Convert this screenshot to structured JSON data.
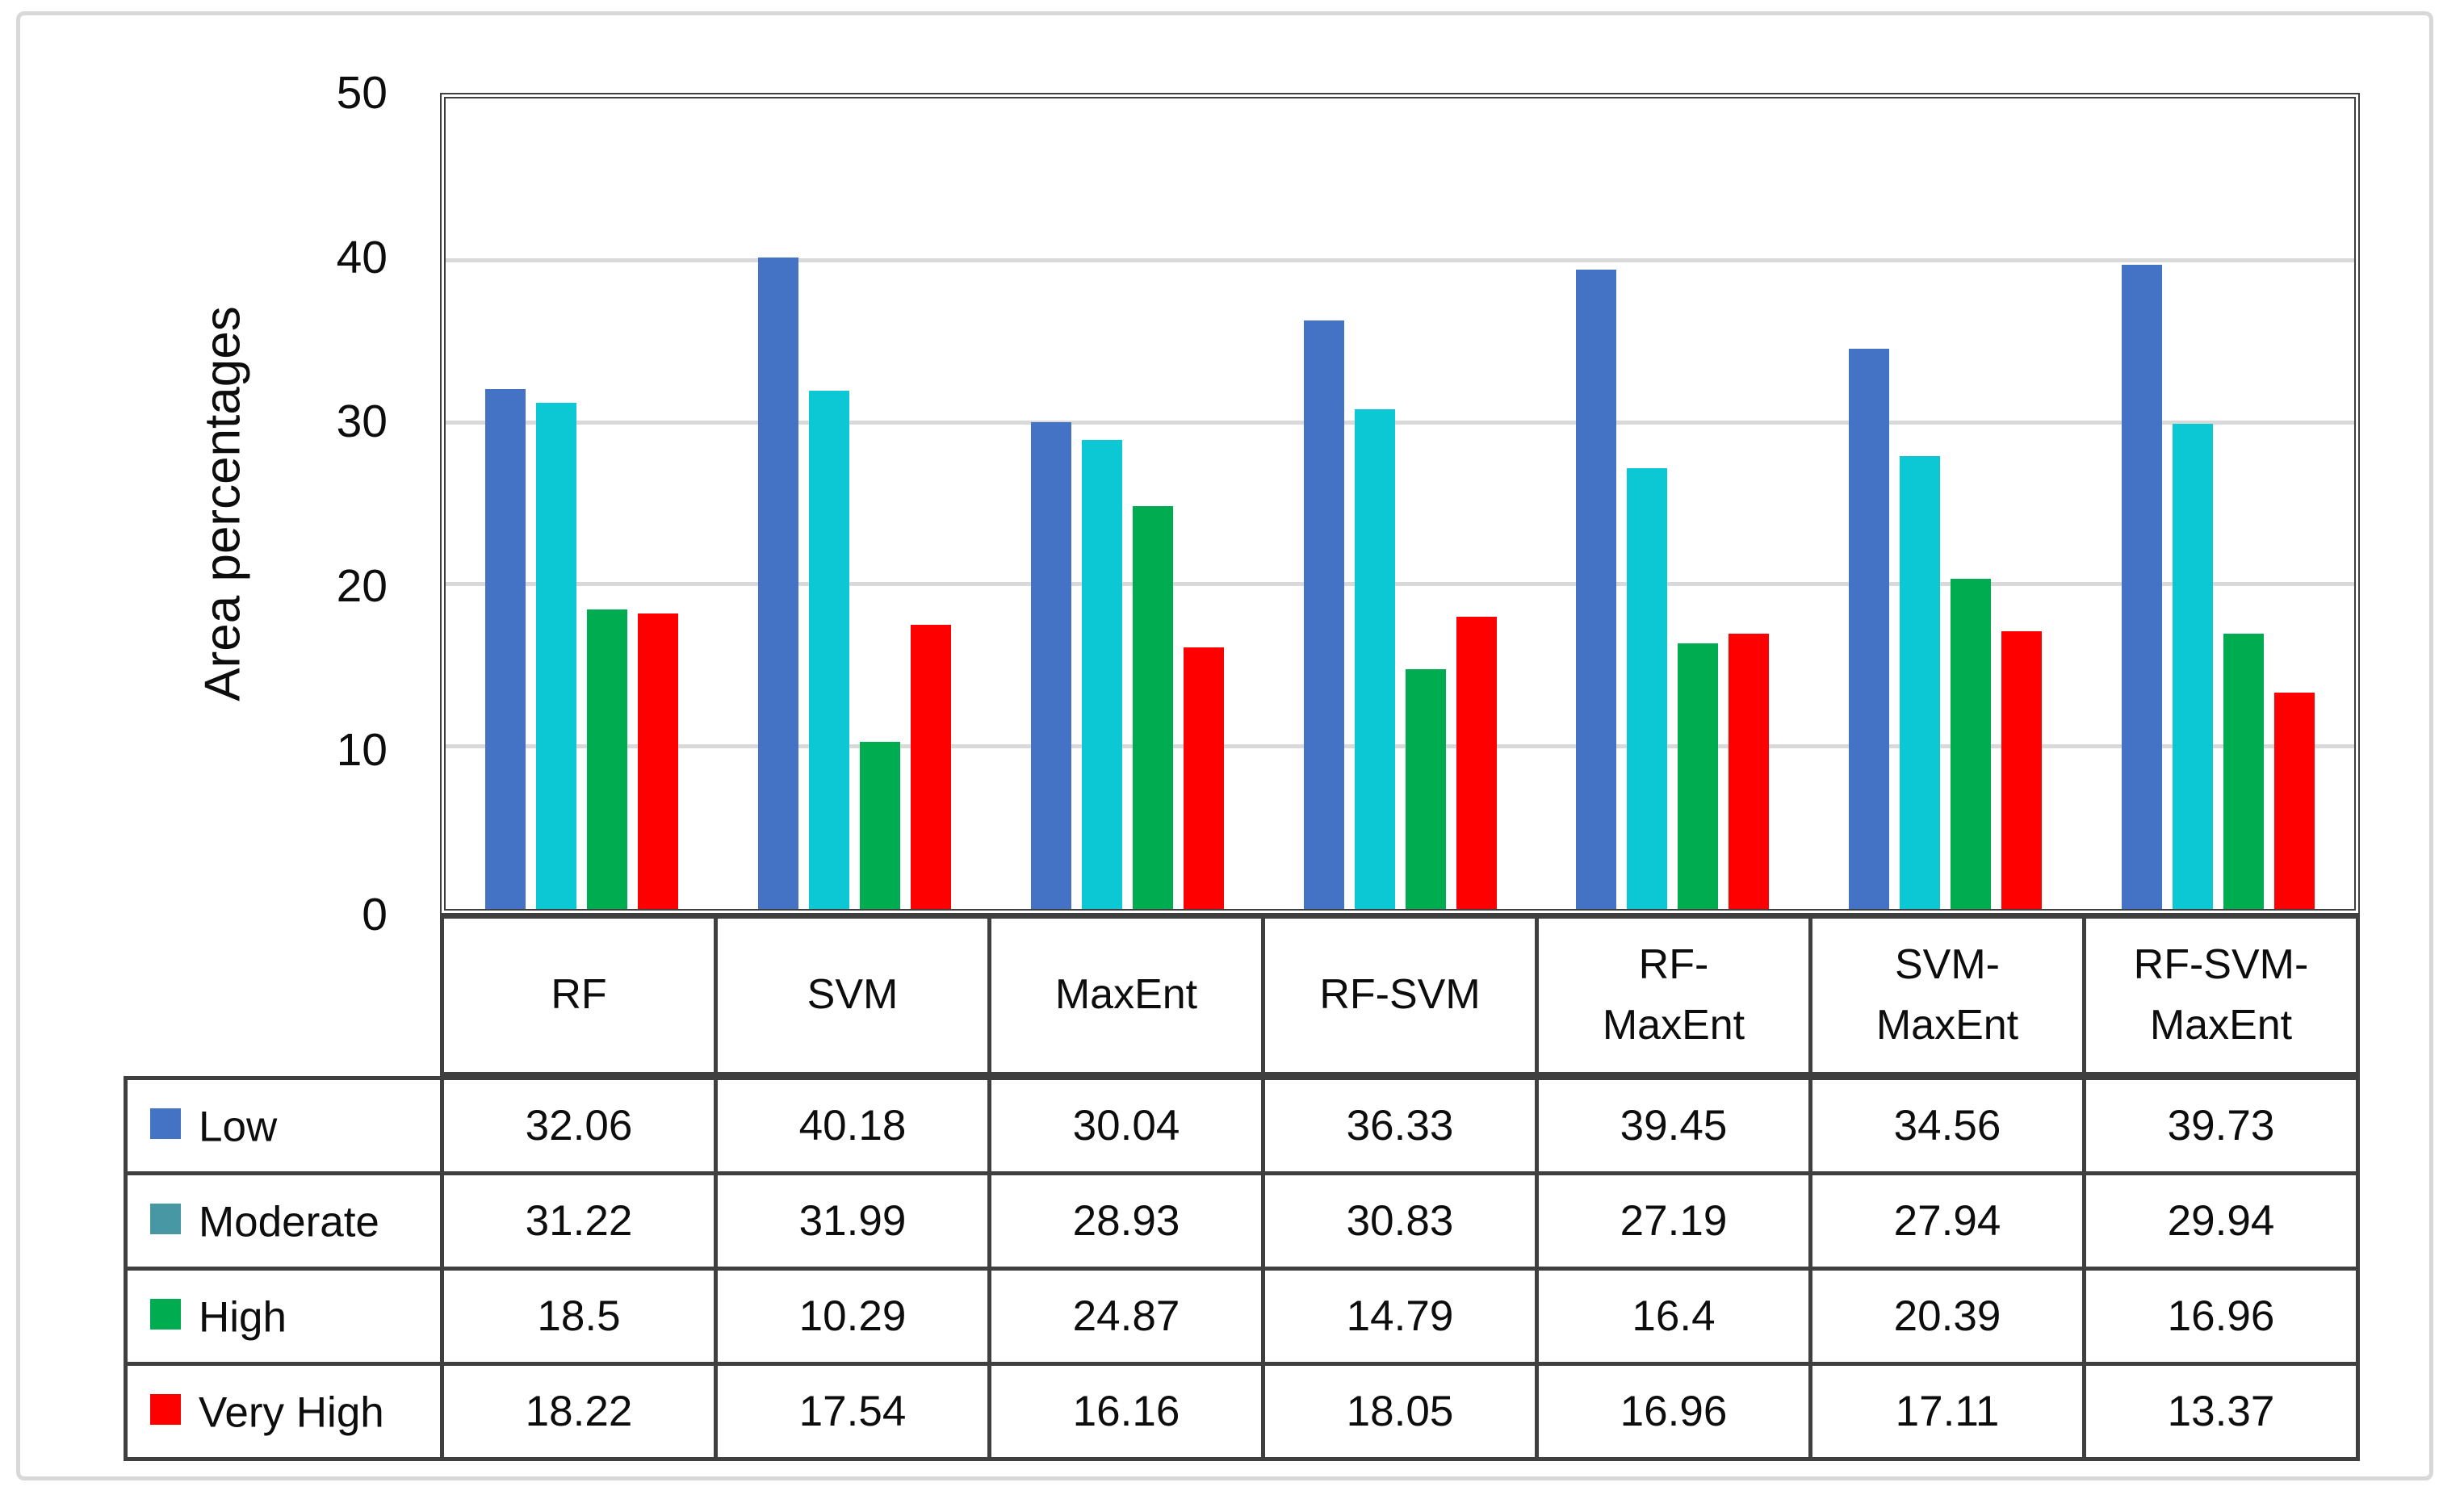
{
  "chart_data": {
    "type": "bar",
    "title": "",
    "xlabel": "",
    "ylabel": "Area percentages",
    "ylim": [
      0,
      50
    ],
    "yticks": [
      0,
      10,
      20,
      30,
      40,
      50
    ],
    "grid": true,
    "legend_position": "table-left",
    "categories": [
      "RF",
      "SVM",
      "MaxEnt",
      "RF-SVM",
      "RF-MaxEnt",
      "SVM-MaxEnt",
      "RF-SVM-MaxEnt"
    ],
    "categories_display": [
      "RF",
      "SVM",
      "MaxEnt",
      "RF-SVM",
      "RF-\nMaxEnt",
      "SVM-\nMaxEnt",
      "RF-SVM-\nMaxEnt"
    ],
    "series": [
      {
        "name": "Low",
        "bar_color": "#4472C4",
        "swatch_color": "#4472C4",
        "values": [
          32.06,
          40.18,
          30.04,
          36.33,
          39.45,
          34.56,
          39.73
        ]
      },
      {
        "name": "Moderate",
        "bar_color": "#0BC8D4",
        "swatch_color": "#4797A4",
        "values": [
          31.22,
          31.99,
          28.93,
          30.83,
          27.19,
          27.94,
          29.94
        ]
      },
      {
        "name": "High",
        "bar_color": "#00AC50",
        "swatch_color": "#00AC50",
        "values": [
          18.5,
          10.29,
          24.87,
          14.79,
          16.4,
          20.39,
          16.96
        ]
      },
      {
        "name": "Very High",
        "bar_color": "#FF0000",
        "swatch_color": "#FF0000",
        "values": [
          18.22,
          17.54,
          16.16,
          18.05,
          16.96,
          17.11,
          13.37
        ]
      }
    ]
  },
  "colors": {
    "plot_border": "#3F3F3F",
    "gridline": "#D9D9D9",
    "table_border": "#3F3F3F",
    "frame_border": "#D8D8D8",
    "background": "#FFFFFF",
    "text": "#0D0D0D"
  }
}
